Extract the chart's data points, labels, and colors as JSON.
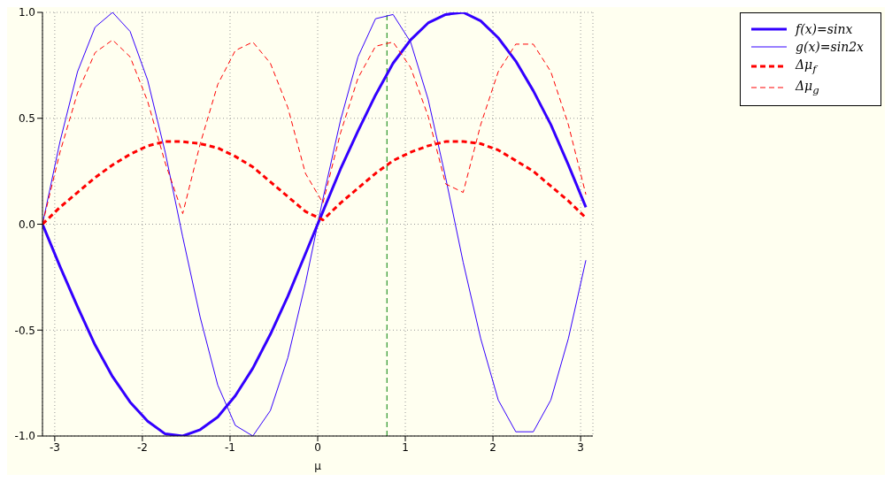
{
  "chart_data": {
    "type": "line",
    "xlabel": "μ",
    "x": [
      -3.14,
      -2.94,
      -2.74,
      -2.54,
      -2.34,
      -2.14,
      -1.94,
      -1.74,
      -1.54,
      -1.34,
      -1.14,
      -0.94,
      -0.74,
      -0.54,
      -0.34,
      -0.14,
      0.06,
      0.26,
      0.46,
      0.66,
      0.86,
      1.06,
      1.26,
      1.46,
      1.66,
      1.86,
      2.06,
      2.26,
      2.46,
      2.66,
      2.86,
      3.06
    ],
    "series": [
      {
        "name": "f(x)=sinx",
        "color": "#3300ff",
        "line_style": "solid",
        "values": [
          0,
          -0.2,
          -0.39,
          -0.57,
          -0.72,
          -0.84,
          -0.93,
          -0.99,
          -1.0,
          -0.97,
          -0.91,
          -0.81,
          -0.68,
          -0.52,
          -0.34,
          -0.14,
          0.06,
          0.26,
          0.44,
          0.61,
          0.76,
          0.87,
          0.95,
          0.99,
          1.0,
          0.96,
          0.88,
          0.77,
          0.63,
          0.47,
          0.28,
          0.08
        ]
      },
      {
        "name": "g(x)=sin2x",
        "color": "#3300ff",
        "line_style": "solid",
        "values": [
          0,
          0.39,
          0.72,
          0.93,
          1.0,
          0.91,
          0.68,
          0.34,
          -0.06,
          -0.44,
          -0.76,
          -0.95,
          -1.0,
          -0.88,
          -0.63,
          -0.28,
          0.12,
          0.49,
          0.79,
          0.97,
          0.99,
          0.86,
          0.59,
          0.22,
          -0.18,
          -0.54,
          -0.83,
          -0.98,
          -0.98,
          -0.83,
          -0.54,
          -0.17
        ]
      },
      {
        "name": "Δμ$_{f}$",
        "color": "#ff0000",
        "line_style": "dashed",
        "values": [
          0,
          0.08,
          0.15,
          0.22,
          0.28,
          0.33,
          0.37,
          0.39,
          0.39,
          0.38,
          0.36,
          0.32,
          0.27,
          0.2,
          0.13,
          0.06,
          0.02,
          0.1,
          0.17,
          0.24,
          0.3,
          0.34,
          0.37,
          0.39,
          0.39,
          0.38,
          0.35,
          0.3,
          0.25,
          0.18,
          0.11,
          0.03
        ]
      },
      {
        "name": "Δμ$_{g}$",
        "color": "#ff0000",
        "line_style": "dashed",
        "values": [
          0,
          0.34,
          0.62,
          0.81,
          0.87,
          0.79,
          0.58,
          0.29,
          0.05,
          0.38,
          0.66,
          0.82,
          0.86,
          0.76,
          0.55,
          0.24,
          0.1,
          0.43,
          0.69,
          0.84,
          0.86,
          0.74,
          0.51,
          0.19,
          0.15,
          0.47,
          0.72,
          0.85,
          0.85,
          0.72,
          0.47,
          0.14
        ]
      }
    ],
    "xlim": [
      -3.14,
      3.14
    ],
    "xticks": [
      -3,
      -2,
      -1,
      0,
      1,
      2,
      3
    ],
    "ylim": [
      -1,
      1
    ],
    "yticks": [
      {
        "value": -1,
        "label": "-1.0"
      },
      {
        "value": -0.5,
        "label": "-0.5"
      },
      {
        "value": 0,
        "label": "0.0"
      },
      {
        "value": 0.5,
        "label": "0.5"
      },
      {
        "value": 1,
        "label": "1.0"
      }
    ],
    "ref_lines": [
      {
        "axis": "x",
        "value": 0.79,
        "color": "#008000",
        "line_style": "dashed"
      }
    ],
    "grid": true,
    "legend": "top right",
    "marker": "none"
  }
}
